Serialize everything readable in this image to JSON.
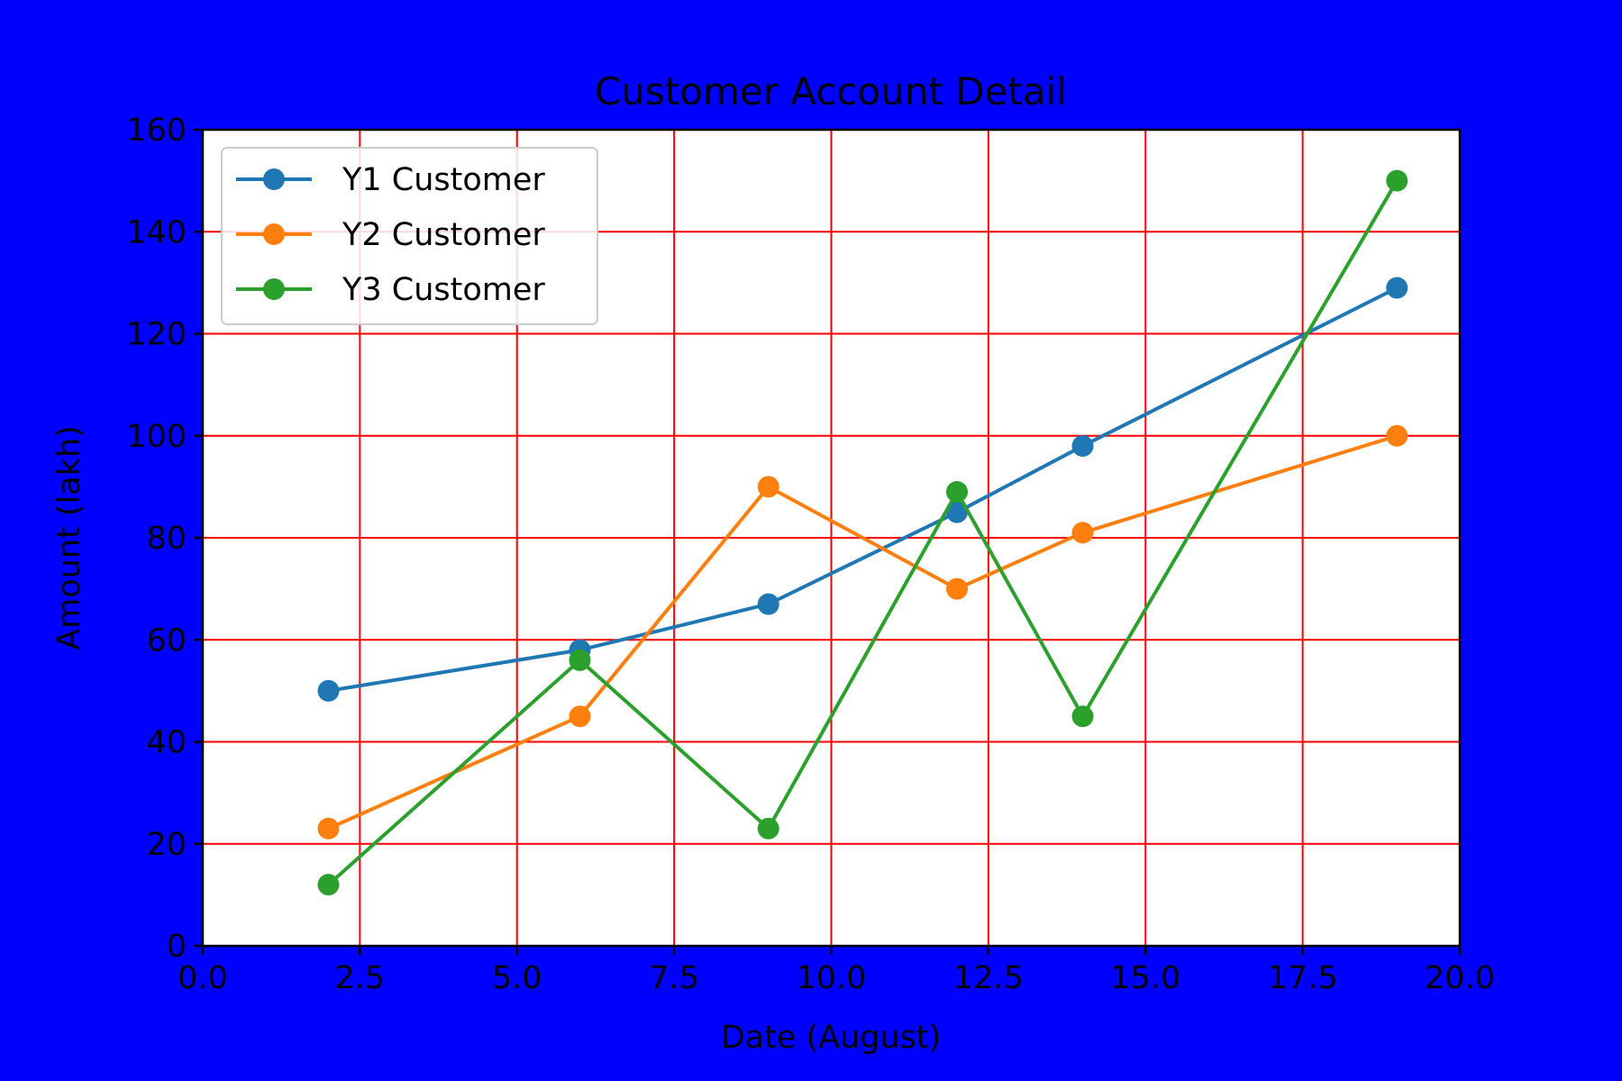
{
  "chart_data": {
    "type": "line",
    "title": "Customer Account Detail",
    "xlabel": "Date (August)",
    "ylabel": "Amount (lakh)",
    "xlim": [
      0,
      20
    ],
    "ylim": [
      0,
      160
    ],
    "x": [
      2,
      6,
      9,
      12,
      14,
      19
    ],
    "x_ticks": [
      "0.0",
      "2.5",
      "5.0",
      "7.5",
      "10.0",
      "12.5",
      "15.0",
      "17.5",
      "20.0"
    ],
    "y_ticks": [
      "0",
      "20",
      "40",
      "60",
      "80",
      "100",
      "120",
      "140",
      "160"
    ],
    "grid": true,
    "grid_color": "#ff0000",
    "background_color": "#0000ff",
    "plot_background": "#ffffff",
    "legend_position": "top-left",
    "series": [
      {
        "name": "Y1 Customer",
        "color": "#1f77b4",
        "values": [
          50,
          58,
          67,
          85,
          98,
          129
        ]
      },
      {
        "name": "Y2 Customer",
        "color": "#ff7f0e",
        "values": [
          23,
          45,
          90,
          70,
          81,
          100
        ]
      },
      {
        "name": "Y3 Customer",
        "color": "#2ca02c",
        "values": [
          12,
          56,
          23,
          89,
          45,
          150
        ]
      }
    ]
  }
}
